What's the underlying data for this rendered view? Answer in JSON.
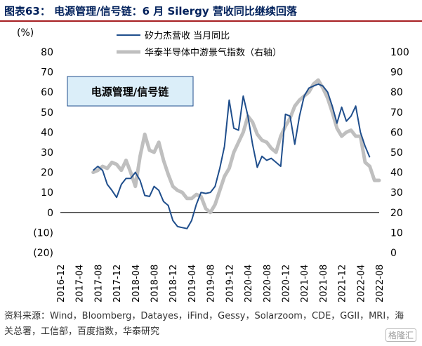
{
  "figure": {
    "title": "图表63： 电源管理/信号链：6 月 Silergy 营收同比继续回落",
    "source": "资料来源：Wind，Bloomberg，Datayes，iFind，Gessy，Solarzoom，CDE，GGII，MRI，海关总署，工信部，百度指数，华泰研究",
    "watermark": "格隆汇"
  },
  "colors": {
    "title": "#00205b",
    "rule": "#a71f23",
    "series_revenue": "#1f4e8c",
    "series_index": "#bfbfbf",
    "box_fill": "#dbeef9",
    "box_border": "#1f4e8c"
  },
  "chart_data": {
    "type": "line",
    "unit_label": "(%)",
    "box_label": "电源管理/信号链",
    "x_ticks": [
      "2016-12",
      "2017-04",
      "2017-08",
      "2017-12",
      "2018-04",
      "2018-08",
      "2018-12",
      "2019-04",
      "2019-08",
      "2019-12",
      "2020-04",
      "2020-08",
      "2020-12",
      "2021-04",
      "2021-08",
      "2021-12",
      "2022-04",
      "2022-08"
    ],
    "ylim_left": [
      -20,
      80
    ],
    "ylim_right": [
      0,
      100
    ],
    "y_ticks_left": [
      "(20)",
      "(10)",
      "0",
      "10",
      "20",
      "30",
      "40",
      "50",
      "60",
      "70",
      "80"
    ],
    "y_ticks_right": [
      "0",
      "10",
      "20",
      "30",
      "40",
      "50",
      "60",
      "70",
      "80",
      "90",
      "100"
    ],
    "legend_position": "top-center",
    "series": [
      {
        "name": "矽力杰营收 当月同比",
        "axis": "left",
        "style": "solid-thin",
        "x": [
          "2017-07",
          "2017-08",
          "2017-09",
          "2017-10",
          "2017-11",
          "2017-12",
          "2018-01",
          "2018-02",
          "2018-03",
          "2018-04",
          "2018-05",
          "2018-06",
          "2018-07",
          "2018-08",
          "2018-09",
          "2018-10",
          "2018-11",
          "2018-12",
          "2019-01",
          "2019-02",
          "2019-03",
          "2019-04",
          "2019-05",
          "2019-06",
          "2019-07",
          "2019-08",
          "2019-09",
          "2019-10",
          "2019-11",
          "2019-12",
          "2020-01",
          "2020-02",
          "2020-03",
          "2020-04",
          "2020-05",
          "2020-06",
          "2020-07",
          "2020-08",
          "2020-09",
          "2020-10",
          "2020-11",
          "2020-12",
          "2021-01",
          "2021-02",
          "2021-03",
          "2021-04",
          "2021-05",
          "2021-06",
          "2021-07",
          "2021-08",
          "2021-09",
          "2021-10",
          "2021-11",
          "2021-12",
          "2022-01",
          "2022-02",
          "2022-03",
          "2022-04",
          "2022-05",
          "2022-06"
        ],
        "values": [
          21,
          23,
          21,
          14,
          11,
          7.5,
          14,
          17,
          17,
          20,
          16,
          8.5,
          8,
          13,
          11,
          5.5,
          3.5,
          -4,
          -7,
          -7.5,
          -8,
          -4,
          4,
          10,
          9.5,
          10,
          13,
          22,
          33,
          56,
          42,
          41,
          58,
          48,
          34,
          22.5,
          28,
          26,
          27,
          25,
          23,
          49,
          48,
          34,
          48,
          58,
          62,
          63,
          64,
          63,
          60,
          53,
          44.5,
          52.5,
          45.5,
          48,
          53,
          40,
          33,
          27.5
        ]
      },
      {
        "name": "华泰半导体中游景气指数（右轴）",
        "axis": "right",
        "style": "solid-thick",
        "x": [
          "2017-07",
          "2017-08",
          "2017-09",
          "2017-10",
          "2017-11",
          "2017-12",
          "2018-01",
          "2018-02",
          "2018-03",
          "2018-04",
          "2018-05",
          "2018-06",
          "2018-07",
          "2018-08",
          "2018-09",
          "2018-10",
          "2018-11",
          "2018-12",
          "2019-01",
          "2019-02",
          "2019-03",
          "2019-04",
          "2019-05",
          "2019-06",
          "2019-07",
          "2019-08",
          "2019-09",
          "2019-10",
          "2019-11",
          "2019-12",
          "2020-01",
          "2020-02",
          "2020-03",
          "2020-04",
          "2020-05",
          "2020-06",
          "2020-07",
          "2020-08",
          "2020-09",
          "2020-10",
          "2020-11",
          "2020-12",
          "2021-01",
          "2021-02",
          "2021-03",
          "2021-04",
          "2021-05",
          "2021-06",
          "2021-07",
          "2021-08",
          "2021-09",
          "2021-10",
          "2021-11",
          "2021-12",
          "2022-01",
          "2022-02",
          "2022-03",
          "2022-04",
          "2022-05",
          "2022-06",
          "2022-07",
          "2022-08"
        ],
        "values": [
          40,
          41,
          43,
          42,
          45,
          44,
          41,
          46,
          40,
          33,
          48,
          59,
          51,
          50,
          55,
          46,
          39,
          33,
          31,
          30,
          27,
          27,
          29,
          28,
          22,
          20,
          24,
          31,
          38,
          42,
          50,
          55,
          60,
          68,
          65,
          59,
          56,
          55,
          52,
          50,
          58,
          63,
          67,
          73,
          76,
          78,
          80,
          84,
          86,
          82,
          77,
          70,
          62,
          58,
          60,
          61,
          58,
          58,
          45,
          43,
          36,
          36
        ]
      }
    ]
  }
}
